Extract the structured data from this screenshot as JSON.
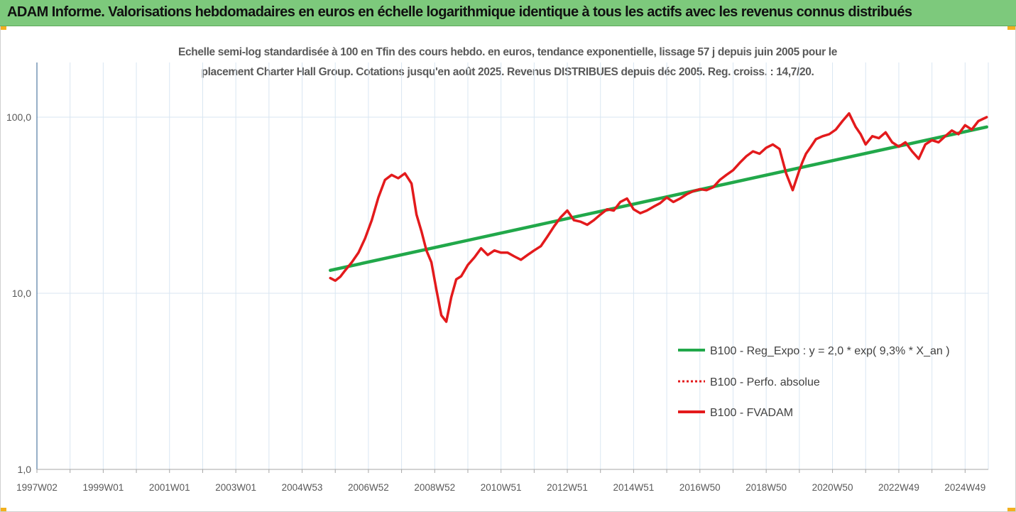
{
  "banner": {
    "title": "ADAM Informe. Valorisations hebdomadaires en euros en échelle logarithmique identique à tous les actifs avec les revenus connus distribués"
  },
  "chart_data": {
    "type": "line",
    "title_lines": [
      "Echelle semi-log standardisée à 100 en Tfin des cours hebdo. en euros, tendance exponentielle, lissage 57 j depuis juin 2005 pour le",
      "placement Charter Hall Group. Cotations jusqu'en août 2025. Revenus DISTRIBUES depuis déc 2005. Reg. croiss. : 14,7/20."
    ],
    "y_scale": "log",
    "ylim": [
      1,
      200
    ],
    "y_ticks": [
      {
        "value": 100,
        "label": "100,0"
      },
      {
        "value": 10,
        "label": "10,0"
      },
      {
        "value": 1,
        "label": "1,0"
      }
    ],
    "xlim": [
      1997.0,
      2025.7
    ],
    "x_ticks": [
      {
        "value": 1997.0,
        "label": "1997W02"
      },
      {
        "value": 1999.0,
        "label": "1999W01"
      },
      {
        "value": 2001.0,
        "label": "2001W01"
      },
      {
        "value": 2003.0,
        "label": "2003W01"
      },
      {
        "value": 2005.0,
        "label": "2004W53"
      },
      {
        "value": 2007.0,
        "label": "2006W52"
      },
      {
        "value": 2009.0,
        "label": "2008W52"
      },
      {
        "value": 2011.0,
        "label": "2010W51"
      },
      {
        "value": 2013.0,
        "label": "2012W51"
      },
      {
        "value": 2015.0,
        "label": "2014W51"
      },
      {
        "value": 2017.0,
        "label": "2016W50"
      },
      {
        "value": 2019.0,
        "label": "2018W50"
      },
      {
        "value": 2021.0,
        "label": "2020W50"
      },
      {
        "value": 2023.0,
        "label": "2022W49"
      },
      {
        "value": 2025.0,
        "label": "2024W49"
      }
    ],
    "grid": "vertical",
    "legend_position": "right-middle",
    "series": [
      {
        "name": "B100 - Reg_Expo : y = 2,0 * exp( 9,3% *  X_an )",
        "color": "#21a84a",
        "style": "solid",
        "x": [
          2005.85,
          2025.65
        ],
        "y": [
          13.5,
          88.0
        ]
      },
      {
        "name": "B100 - Perfo. absolue",
        "color": "#e31a1c",
        "style": "dotted",
        "x": [],
        "y": []
      },
      {
        "name": "B100 - FVADAM",
        "color": "#e31a1c",
        "style": "solid",
        "x": [
          2005.85,
          2006.0,
          2006.15,
          2006.3,
          2006.5,
          2006.7,
          2006.9,
          2007.1,
          2007.3,
          2007.5,
          2007.7,
          2007.9,
          2008.1,
          2008.3,
          2008.45,
          2008.6,
          2008.75,
          2008.9,
          2009.05,
          2009.2,
          2009.35,
          2009.5,
          2009.65,
          2009.8,
          2010.0,
          2010.2,
          2010.4,
          2010.6,
          2010.8,
          2011.0,
          2011.2,
          2011.4,
          2011.6,
          2011.8,
          2012.0,
          2012.2,
          2012.4,
          2012.6,
          2012.8,
          2013.0,
          2013.2,
          2013.4,
          2013.6,
          2013.8,
          2014.0,
          2014.2,
          2014.4,
          2014.6,
          2014.8,
          2015.0,
          2015.2,
          2015.4,
          2015.6,
          2015.8,
          2016.0,
          2016.2,
          2016.4,
          2016.6,
          2016.8,
          2017.0,
          2017.2,
          2017.4,
          2017.6,
          2017.8,
          2018.0,
          2018.2,
          2018.4,
          2018.6,
          2018.8,
          2019.0,
          2019.2,
          2019.4,
          2019.6,
          2019.8,
          2020.0,
          2020.1,
          2020.2,
          2020.35,
          2020.5,
          2020.7,
          2020.9,
          2021.1,
          2021.3,
          2021.5,
          2021.7,
          2021.85,
          2022.0,
          2022.2,
          2022.4,
          2022.6,
          2022.8,
          2023.0,
          2023.2,
          2023.4,
          2023.6,
          2023.8,
          2024.0,
          2024.2,
          2024.4,
          2024.6,
          2024.8,
          2025.0,
          2025.2,
          2025.4,
          2025.65
        ],
        "y": [
          12.2,
          11.8,
          12.4,
          13.5,
          15.0,
          17.0,
          20.5,
          26.0,
          35.0,
          44.0,
          47.0,
          45.0,
          48.0,
          42.0,
          28.0,
          22.5,
          17.5,
          15.0,
          10.5,
          7.5,
          6.9,
          9.5,
          12.0,
          12.5,
          14.5,
          16.0,
          18.0,
          16.5,
          17.5,
          17.0,
          17.0,
          16.2,
          15.5,
          16.5,
          17.5,
          18.5,
          21.0,
          24.0,
          27.0,
          29.5,
          26.0,
          25.5,
          24.5,
          26.0,
          28.0,
          30.0,
          29.5,
          33.0,
          34.5,
          30.0,
          28.5,
          29.5,
          31.0,
          32.5,
          35.0,
          33.0,
          34.5,
          36.5,
          38.0,
          39.0,
          38.5,
          40.0,
          44.0,
          47.0,
          50.0,
          55.0,
          60.0,
          64.0,
          62.0,
          67.0,
          70.0,
          66.0,
          48.0,
          38.5,
          50.0,
          56.0,
          62.0,
          68.0,
          75.0,
          78.0,
          80.0,
          85.0,
          95.0,
          105.0,
          88.0,
          80.0,
          70.0,
          78.0,
          76.0,
          82.0,
          72.0,
          68.0,
          72.0,
          64.0,
          58.0,
          70.0,
          74.0,
          72.0,
          78.0,
          84.0,
          80.0,
          90.0,
          85.0,
          95.0,
          100.0
        ]
      }
    ]
  }
}
